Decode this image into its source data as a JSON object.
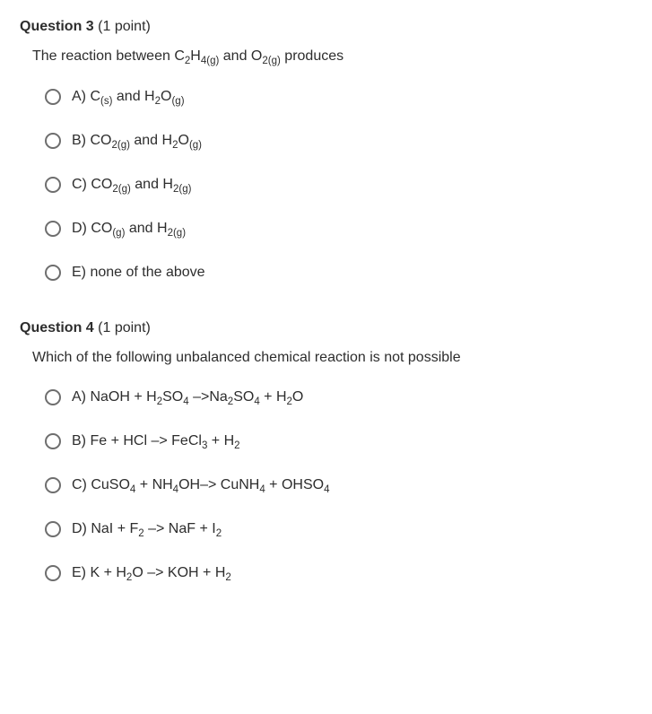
{
  "questions": [
    {
      "number": "Question 3",
      "points": "(1 point)",
      "stem_html": "The reaction between C<sub>2</sub>H<sub>4(g)</sub> and O<sub>2(g)</sub> produces",
      "options": [
        {
          "label": "A)",
          "html": "C<sub>(s)</sub> and H<sub>2</sub>O<sub>(g)</sub>"
        },
        {
          "label": "B)",
          "html": "CO<sub>2(g)</sub> and H<sub>2</sub>O<sub>(g)</sub>"
        },
        {
          "label": "C)",
          "html": "CO<sub>2(g)</sub> and H<sub>2(g)</sub>"
        },
        {
          "label": "D)",
          "html": "CO<sub>(g)</sub> and H<sub>2(g)</sub>"
        },
        {
          "label": "E)",
          "html": "none of the above"
        }
      ]
    },
    {
      "number": "Question 4",
      "points": "(1 point)",
      "stem_html": "Which of the following unbalanced chemical reaction is not possible",
      "options": [
        {
          "label": "A)",
          "html": "NaOH + H<sub>2</sub>SO<sub>4</sub> &ndash;&gt;Na<sub>2</sub>SO<sub>4</sub> + H<sub>2</sub>O"
        },
        {
          "label": "B)",
          "html": "Fe + HCl &ndash;&gt; FeCl<sub>3</sub> + H<sub>2</sub>"
        },
        {
          "label": "C)",
          "html": "CuSO<sub>4</sub> + NH<sub>4</sub>OH&ndash;&gt; CuNH<sub>4</sub> + OHSO<sub>4</sub>"
        },
        {
          "label": "D)",
          "html": "NaI + F<sub>2</sub> &ndash;&gt; NaF + I<sub>2</sub>"
        },
        {
          "label": "E)",
          "html": "K + H<sub>2</sub>O &ndash;&gt; KOH + H<sub>2</sub>"
        }
      ]
    }
  ],
  "colors": {
    "text": "#2d2d2d",
    "radio_border": "#6e6e6e",
    "background": "#ffffff"
  }
}
